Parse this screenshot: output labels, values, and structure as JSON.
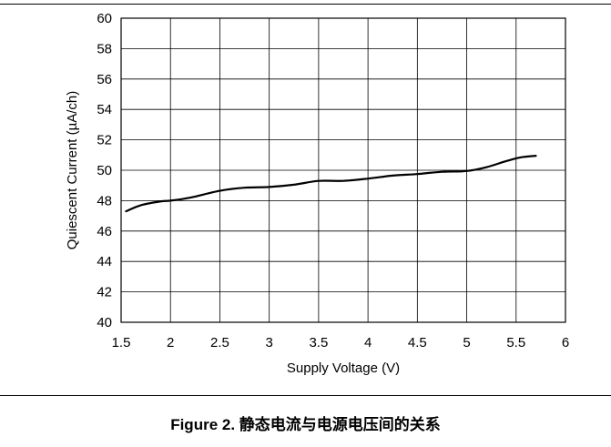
{
  "caption": "Figure 2. 静态电流与电源电压间的关系",
  "chart_data": {
    "type": "line",
    "xlabel": "Supply Voltage (V)",
    "ylabel": "Quiescent Current (µA/ch)",
    "xlim": [
      1.5,
      6
    ],
    "ylim": [
      40,
      60
    ],
    "xticks": [
      "1.5",
      "2",
      "2.5",
      "3",
      "3.5",
      "4",
      "4.5",
      "5",
      "5.5",
      "6"
    ],
    "yticks": [
      "40",
      "42",
      "44",
      "46",
      "48",
      "50",
      "52",
      "54",
      "56",
      "58",
      "60"
    ],
    "grid": true,
    "line_color": "#000000",
    "series": [
      {
        "x": [
          1.55,
          1.7,
          1.9,
          2.0,
          2.2,
          2.5,
          2.75,
          3.0,
          3.25,
          3.5,
          3.75,
          4.0,
          4.25,
          4.5,
          4.75,
          5.0,
          5.2,
          5.4,
          5.55,
          5.7
        ],
        "values": [
          47.3,
          47.7,
          47.95,
          48.0,
          48.2,
          48.65,
          48.85,
          48.9,
          49.05,
          49.3,
          49.3,
          49.45,
          49.65,
          49.75,
          49.9,
          49.95,
          50.2,
          50.6,
          50.85,
          50.95
        ]
      }
    ]
  }
}
